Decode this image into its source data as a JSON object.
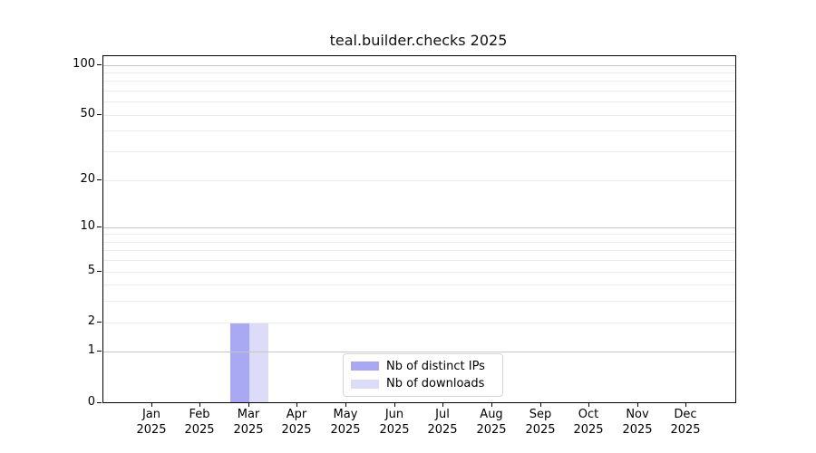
{
  "chart_data": {
    "type": "bar",
    "title": "teal.builder.checks 2025",
    "categories": [
      "Jan 2025",
      "Feb 2025",
      "Mar 2025",
      "Apr 2025",
      "May 2025",
      "Jun 2025",
      "Jul 2025",
      "Aug 2025",
      "Sep 2025",
      "Oct 2025",
      "Nov 2025",
      "Dec 2025"
    ],
    "series": [
      {
        "name": "Nb of distinct IPs",
        "color": "#a9a9f3",
        "values": [
          0,
          0,
          2,
          0,
          0,
          0,
          0,
          0,
          0,
          0,
          0,
          0
        ]
      },
      {
        "name": "Nb of downloads",
        "color": "#dcdcf8",
        "values": [
          0,
          0,
          2,
          0,
          0,
          0,
          0,
          0,
          0,
          0,
          0,
          0
        ]
      }
    ],
    "yscale": "log1p",
    "ylim": [
      0,
      112
    ],
    "y_major_ticks": [
      0,
      1,
      2,
      5,
      10,
      20,
      50,
      100
    ],
    "y_decade_gridlines": [
      1,
      10,
      100
    ],
    "y_minor_gridlines": [
      2,
      3,
      4,
      5,
      6,
      7,
      8,
      9,
      20,
      30,
      40,
      50,
      60,
      70,
      80,
      90
    ],
    "grid": true,
    "legend_position": "lower center",
    "colors": {
      "grid_minor": "#ececec",
      "grid_major": "#c6c6c6",
      "axis": "#000000",
      "text": "#000000",
      "background": "#ffffff"
    }
  }
}
